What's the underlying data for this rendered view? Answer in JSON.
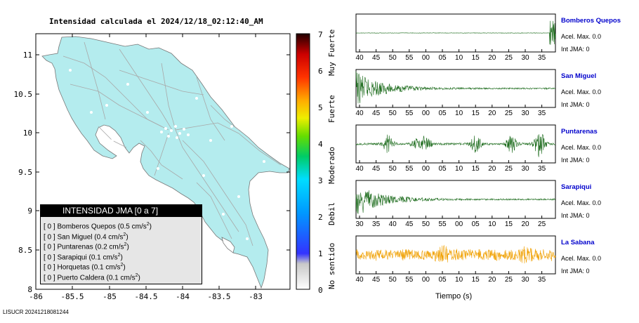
{
  "map": {
    "title": "Intensidad calculada el 2024/12/18_02:12:40_AM",
    "x_ticks": [
      "-86",
      "-85.5",
      "-85",
      "-84.5",
      "-84",
      "-83.5",
      "-83"
    ],
    "y_ticks": [
      "11",
      "10.5",
      "10",
      "9.5",
      "9",
      "8.5",
      "8"
    ]
  },
  "colorbar": {
    "ticks": [
      "7",
      "6",
      "5",
      "4",
      "3",
      "2",
      "1",
      "0"
    ],
    "labels": [
      "Muy Fuerte",
      "Fuerte",
      "Moderado",
      "Debil",
      "No sentido"
    ]
  },
  "legend": {
    "title": "INTENSIDAD JMA [0 a 7]",
    "items": [
      {
        "intensity": "[ 0 ]",
        "station": "Bomberos Quepos",
        "value": "(0.5 cm/s",
        "unit_exp": "2",
        "close": ")"
      },
      {
        "intensity": "[ 0 ]",
        "station": "San Miguel",
        "value": "(0.4 cm/s",
        "unit_exp": "2",
        "close": ")"
      },
      {
        "intensity": "[ 0 ]",
        "station": "Puntarenas",
        "value": "(0.2 cm/s",
        "unit_exp": "2",
        "close": ")"
      },
      {
        "intensity": "[ 0 ]",
        "station": "Sarapiqui",
        "value": "(0.1 cm/s",
        "unit_exp": "2",
        "close": ")"
      },
      {
        "intensity": "[ 0 ]",
        "station": "Horquetas",
        "value": "(0.1 cm/s",
        "unit_exp": "2",
        "close": ")"
      },
      {
        "intensity": "[ 0 ]",
        "station": "Puerto Caldera",
        "value": "(0.1 cm/s",
        "unit_exp": "2",
        "close": ")"
      }
    ]
  },
  "footer": "LISUCR 20241218081244",
  "chart_data": {
    "type": "line",
    "xlabel": "Tiempo (s)",
    "stations": [
      {
        "name": "Bomberos Quepos",
        "accel": "Acel. Max. 0.0",
        "jma": "Int JMA: 0",
        "color": "#1a6a1a",
        "name_color": "#0000cc",
        "ticks": [
          "40",
          "45",
          "50",
          "55",
          "00",
          "05",
          "10",
          "15",
          "20",
          "25",
          "30",
          "35"
        ],
        "profile": "end"
      },
      {
        "name": "San Miguel",
        "accel": "Acel. Max. 0.0",
        "jma": "Int JMA: 0",
        "color": "#1a6a1a",
        "name_color": "#0000cc",
        "ticks": [
          "40",
          "45",
          "50",
          "55",
          "00",
          "05",
          "10",
          "15",
          "20",
          "25",
          "30",
          "35"
        ],
        "profile": "decay"
      },
      {
        "name": "Puntarenas",
        "accel": "Acel. Max. 0.0",
        "jma": "Int JMA: 0",
        "color": "#1a6a1a",
        "name_color": "#0000cc",
        "ticks": [
          "40",
          "45",
          "50",
          "55",
          "00",
          "05",
          "10",
          "15",
          "20",
          "25",
          "30",
          "35"
        ],
        "profile": "bursts"
      },
      {
        "name": "Sarapiqui",
        "accel": "Acel. Max. 0.0",
        "jma": "Int JMA: 0",
        "color": "#1a6a1a",
        "name_color": "#0000cc",
        "ticks": [
          "30",
          "35",
          "40",
          "45",
          "50",
          "55",
          "00",
          "05",
          "10",
          "15",
          "20",
          "25"
        ],
        "profile": "decay"
      },
      {
        "name": "La Sabana",
        "accel": "Acel. Max. 0.0",
        "jma": "Int JMA: 0",
        "color": "#f0a000",
        "name_color": "#0000cc",
        "ticks": [
          "40",
          "45",
          "50",
          "55",
          "00",
          "05",
          "10",
          "15",
          "20",
          "25",
          "30",
          "35"
        ],
        "profile": "noise"
      }
    ]
  }
}
